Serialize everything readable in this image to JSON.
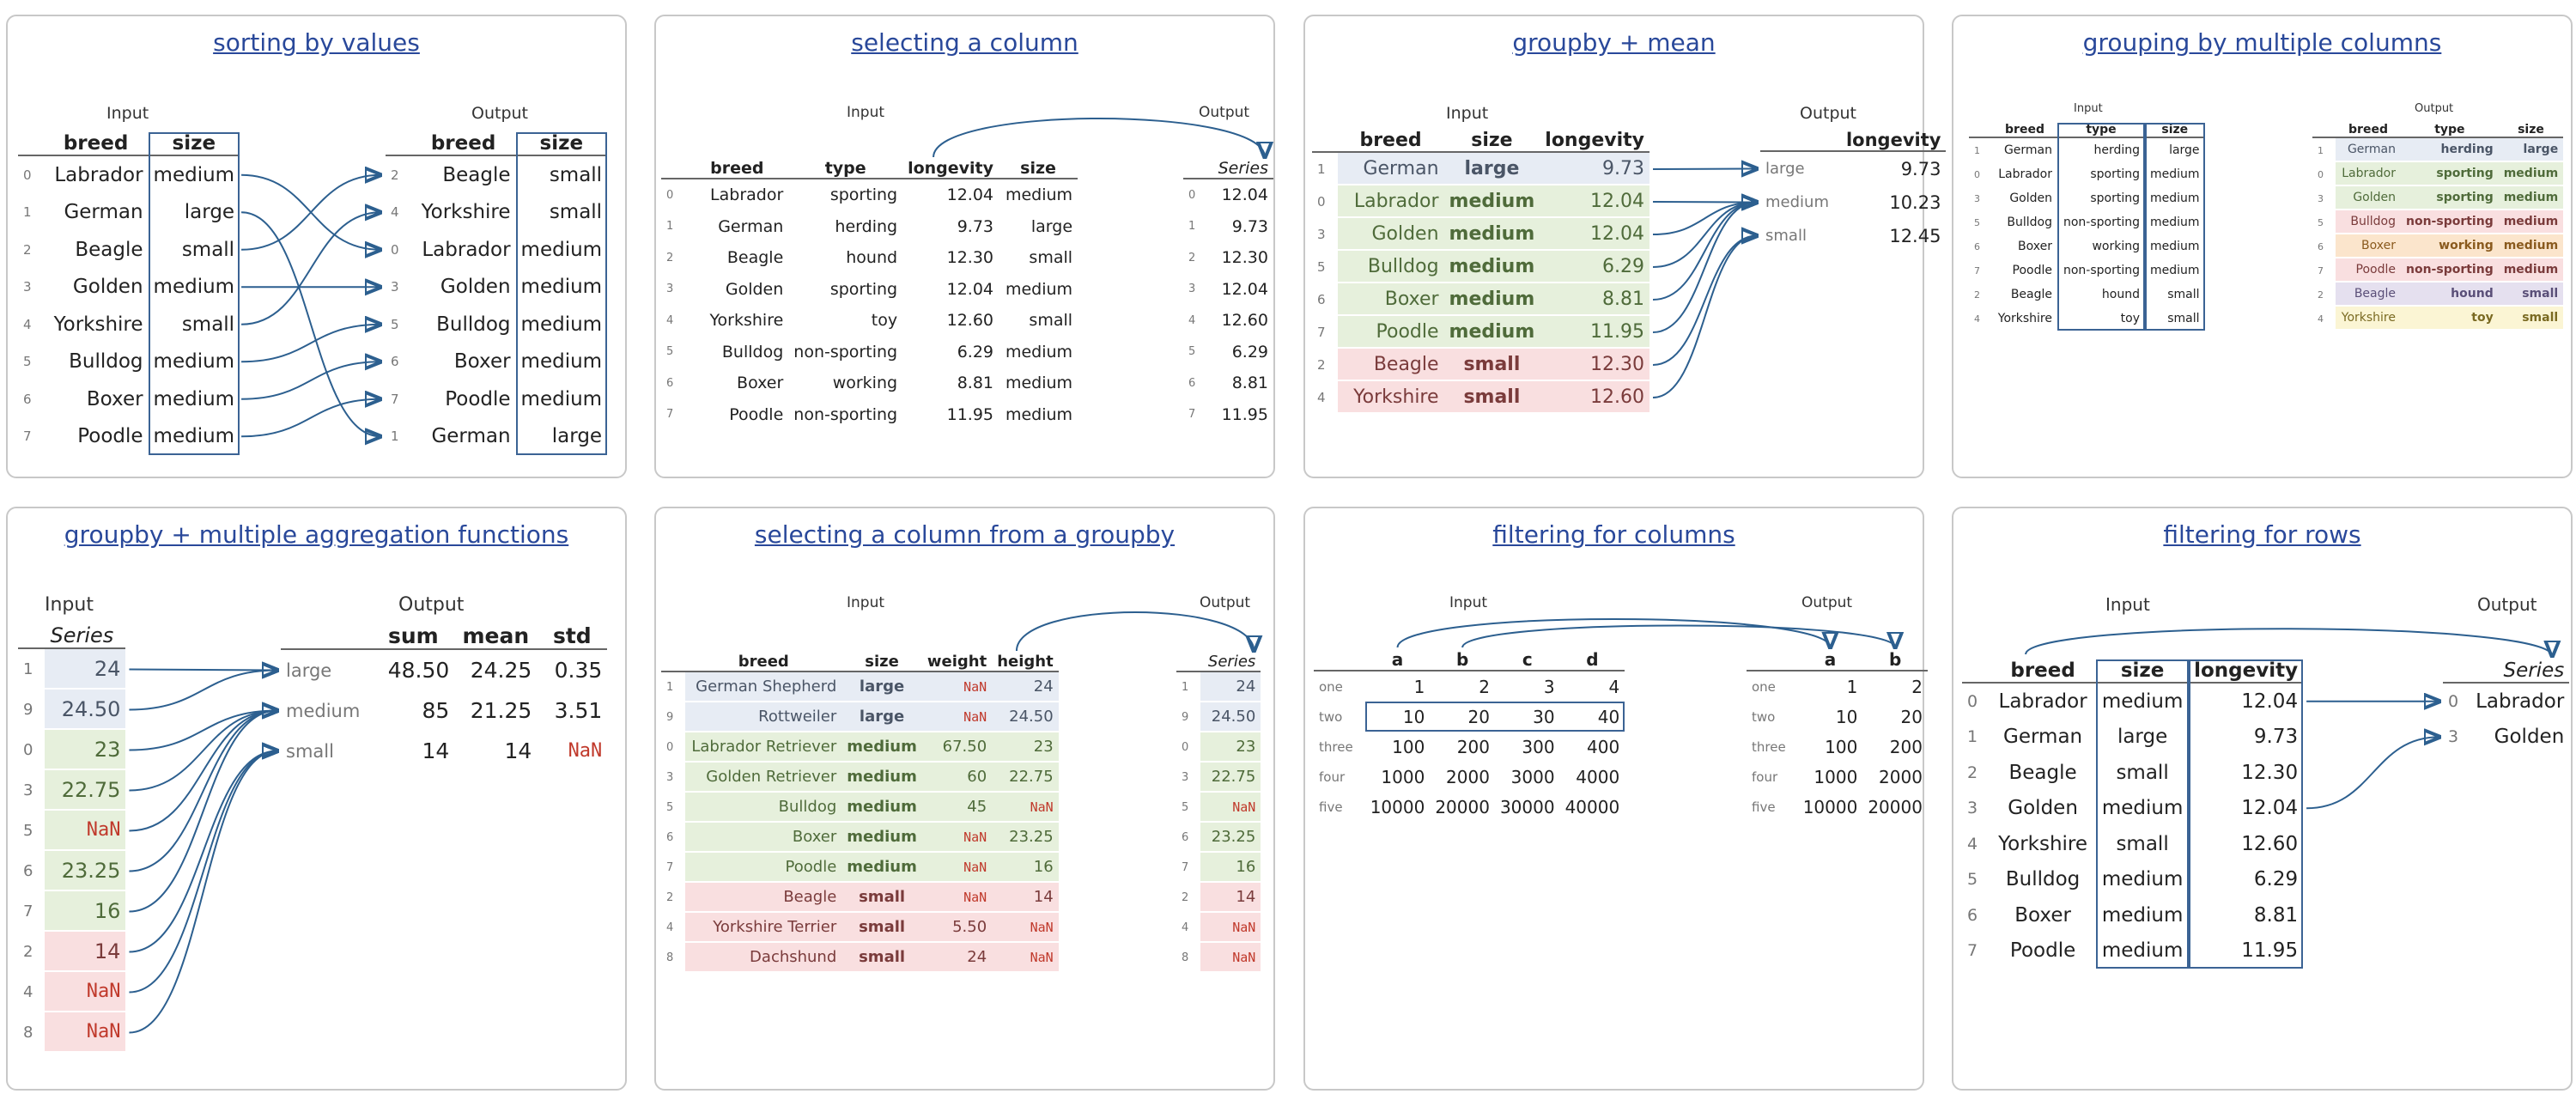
{
  "p1": {
    "title": "sorting by values",
    "input_label": "Input",
    "output_label": "Output",
    "in_headers": [
      "breed",
      "size"
    ],
    "out_headers": [
      "breed",
      "size"
    ],
    "input_rows": [
      [
        "0",
        "Labrador",
        "medium"
      ],
      [
        "1",
        "German",
        "large"
      ],
      [
        "2",
        "Beagle",
        "small"
      ],
      [
        "3",
        "Golden",
        "medium"
      ],
      [
        "4",
        "Yorkshire",
        "small"
      ],
      [
        "5",
        "Bulldog",
        "medium"
      ],
      [
        "6",
        "Boxer",
        "medium"
      ],
      [
        "7",
        "Poodle",
        "medium"
      ]
    ],
    "output_rows": [
      [
        "2",
        "Beagle",
        "small"
      ],
      [
        "4",
        "Yorkshire",
        "small"
      ],
      [
        "0",
        "Labrador",
        "medium"
      ],
      [
        "3",
        "Golden",
        "medium"
      ],
      [
        "5",
        "Bulldog",
        "medium"
      ],
      [
        "6",
        "Boxer",
        "medium"
      ],
      [
        "7",
        "Poodle",
        "medium"
      ],
      [
        "1",
        "German",
        "large"
      ]
    ]
  },
  "p2": {
    "title": "selecting a column",
    "input_label": "Input",
    "output_label": "Output",
    "series_label": "Series",
    "in_headers": [
      "breed",
      "type",
      "longevity",
      "size"
    ],
    "input_rows": [
      [
        "0",
        "Labrador",
        "sporting",
        "12.04",
        "medium"
      ],
      [
        "1",
        "German",
        "herding",
        "9.73",
        "large"
      ],
      [
        "2",
        "Beagle",
        "hound",
        "12.30",
        "small"
      ],
      [
        "3",
        "Golden",
        "sporting",
        "12.04",
        "medium"
      ],
      [
        "4",
        "Yorkshire",
        "toy",
        "12.60",
        "small"
      ],
      [
        "5",
        "Bulldog",
        "non-sporting",
        "6.29",
        "medium"
      ],
      [
        "6",
        "Boxer",
        "working",
        "8.81",
        "medium"
      ],
      [
        "7",
        "Poodle",
        "non-sporting",
        "11.95",
        "medium"
      ]
    ],
    "output_rows": [
      [
        "0",
        "12.04"
      ],
      [
        "1",
        "9.73"
      ],
      [
        "2",
        "12.30"
      ],
      [
        "3",
        "12.04"
      ],
      [
        "4",
        "12.60"
      ],
      [
        "5",
        "6.29"
      ],
      [
        "6",
        "8.81"
      ],
      [
        "7",
        "11.95"
      ]
    ]
  },
  "p3": {
    "title": "groupby + mean",
    "input_label": "Input",
    "output_label": "Output",
    "in_headers": [
      "breed",
      "size",
      "longevity"
    ],
    "out_header": "longevity",
    "input_rows": [
      [
        "1",
        "German",
        "large",
        "9.73",
        "b"
      ],
      [
        "0",
        "Labrador",
        "medium",
        "12.04",
        "g"
      ],
      [
        "3",
        "Golden",
        "medium",
        "12.04",
        "g"
      ],
      [
        "5",
        "Bulldog",
        "medium",
        "6.29",
        "g"
      ],
      [
        "6",
        "Boxer",
        "medium",
        "8.81",
        "g"
      ],
      [
        "7",
        "Poodle",
        "medium",
        "11.95",
        "g"
      ],
      [
        "2",
        "Beagle",
        "small",
        "12.30",
        "r"
      ],
      [
        "4",
        "Yorkshire",
        "small",
        "12.60",
        "r"
      ]
    ],
    "output_rows": [
      [
        "large",
        "9.73"
      ],
      [
        "medium",
        "10.23"
      ],
      [
        "small",
        "12.45"
      ]
    ]
  },
  "p4": {
    "title": "grouping by multiple columns",
    "input_label": "Input",
    "output_label": "Output",
    "in_headers": [
      "breed",
      "type",
      "size"
    ],
    "out_headers": [
      "breed",
      "type",
      "size"
    ],
    "input_rows": [
      [
        "1",
        "German",
        "herding",
        "large"
      ],
      [
        "0",
        "Labrador",
        "sporting",
        "medium"
      ],
      [
        "3",
        "Golden",
        "sporting",
        "medium"
      ],
      [
        "5",
        "Bulldog",
        "non-sporting",
        "medium"
      ],
      [
        "6",
        "Boxer",
        "working",
        "medium"
      ],
      [
        "7",
        "Poodle",
        "non-sporting",
        "medium"
      ],
      [
        "2",
        "Beagle",
        "hound",
        "small"
      ],
      [
        "4",
        "Yorkshire",
        "toy",
        "small"
      ]
    ],
    "output_rows": [
      [
        "1",
        "German",
        "herding",
        "large",
        "b"
      ],
      [
        "0",
        "Labrador",
        "sporting",
        "medium",
        "g"
      ],
      [
        "3",
        "Golden",
        "sporting",
        "medium",
        "g"
      ],
      [
        "5",
        "Bulldog",
        "non-sporting",
        "medium",
        "r"
      ],
      [
        "6",
        "Boxer",
        "working",
        "medium",
        "o"
      ],
      [
        "7",
        "Poodle",
        "non-sporting",
        "medium",
        "r"
      ],
      [
        "2",
        "Beagle",
        "hound",
        "small",
        "p"
      ],
      [
        "4",
        "Yorkshire",
        "toy",
        "small",
        "y"
      ]
    ]
  },
  "p5": {
    "title": "groupby + multiple aggregation functions",
    "input_label": "Input",
    "output_label": "Output",
    "series_label": "Series",
    "input_rows": [
      [
        "1",
        "24",
        "b"
      ],
      [
        "9",
        "24.50",
        "b"
      ],
      [
        "0",
        "23",
        "g"
      ],
      [
        "3",
        "22.75",
        "g"
      ],
      [
        "5",
        "NaN",
        "g"
      ],
      [
        "6",
        "23.25",
        "g"
      ],
      [
        "7",
        "16",
        "g"
      ],
      [
        "2",
        "14",
        "r"
      ],
      [
        "4",
        "NaN",
        "r"
      ],
      [
        "8",
        "NaN",
        "r"
      ]
    ],
    "out_headers": [
      "sum",
      "mean",
      "std"
    ],
    "output_rows": [
      [
        "large",
        "48.50",
        "24.25",
        "0.35"
      ],
      [
        "medium",
        "85",
        "21.25",
        "3.51"
      ],
      [
        "small",
        "14",
        "14",
        "NaN"
      ]
    ]
  },
  "p6": {
    "title": "selecting a column from a groupby",
    "input_label": "Input",
    "output_label": "Output",
    "series_label": "Series",
    "in_headers": [
      "breed",
      "size",
      "weight",
      "height"
    ],
    "input_rows": [
      [
        "1",
        "German Shepherd",
        "large",
        "NaN",
        "24",
        "b"
      ],
      [
        "9",
        "Rottweiler",
        "large",
        "NaN",
        "24.50",
        "b"
      ],
      [
        "0",
        "Labrador Retriever",
        "medium",
        "67.50",
        "23",
        "g"
      ],
      [
        "3",
        "Golden Retriever",
        "medium",
        "60",
        "22.75",
        "g"
      ],
      [
        "5",
        "Bulldog",
        "medium",
        "45",
        "NaN",
        "g"
      ],
      [
        "6",
        "Boxer",
        "medium",
        "NaN",
        "23.25",
        "g"
      ],
      [
        "7",
        "Poodle",
        "medium",
        "NaN",
        "16",
        "g"
      ],
      [
        "2",
        "Beagle",
        "small",
        "NaN",
        "14",
        "r"
      ],
      [
        "4",
        "Yorkshire Terrier",
        "small",
        "5.50",
        "NaN",
        "r"
      ],
      [
        "8",
        "Dachshund",
        "small",
        "24",
        "NaN",
        "r"
      ]
    ],
    "output_rows": [
      [
        "1",
        "24",
        "b"
      ],
      [
        "9",
        "24.50",
        "b"
      ],
      [
        "0",
        "23",
        "g"
      ],
      [
        "3",
        "22.75",
        "g"
      ],
      [
        "5",
        "NaN",
        "g"
      ],
      [
        "6",
        "23.25",
        "g"
      ],
      [
        "7",
        "16",
        "g"
      ],
      [
        "2",
        "14",
        "r"
      ],
      [
        "4",
        "NaN",
        "r"
      ],
      [
        "8",
        "NaN",
        "r"
      ]
    ]
  },
  "p7": {
    "title": "filtering for columns",
    "input_label": "Input",
    "output_label": "Output",
    "in_headers": [
      "a",
      "b",
      "c",
      "d"
    ],
    "out_headers": [
      "a",
      "b"
    ],
    "input_rows": [
      [
        "one",
        "1",
        "2",
        "3",
        "4"
      ],
      [
        "two",
        "10",
        "20",
        "30",
        "40"
      ],
      [
        "three",
        "100",
        "200",
        "300",
        "400"
      ],
      [
        "four",
        "1000",
        "2000",
        "3000",
        "4000"
      ],
      [
        "five",
        "10000",
        "20000",
        "30000",
        "40000"
      ]
    ],
    "output_rows": [
      [
        "one",
        "1",
        "2"
      ],
      [
        "two",
        "10",
        "20"
      ],
      [
        "three",
        "100",
        "200"
      ],
      [
        "four",
        "1000",
        "2000"
      ],
      [
        "five",
        "10000",
        "20000"
      ]
    ]
  },
  "p8": {
    "title": "filtering for rows",
    "input_label": "Input",
    "output_label": "Output",
    "series_label": "Series",
    "in_headers": [
      "breed",
      "size",
      "longevity"
    ],
    "input_rows": [
      [
        "0",
        "Labrador",
        "medium",
        "12.04"
      ],
      [
        "1",
        "German",
        "large",
        "9.73"
      ],
      [
        "2",
        "Beagle",
        "small",
        "12.30"
      ],
      [
        "3",
        "Golden",
        "medium",
        "12.04"
      ],
      [
        "4",
        "Yorkshire",
        "small",
        "12.60"
      ],
      [
        "5",
        "Bulldog",
        "medium",
        "6.29"
      ],
      [
        "6",
        "Boxer",
        "medium",
        "8.81"
      ],
      [
        "7",
        "Poodle",
        "medium",
        "11.95"
      ]
    ],
    "output_rows": [
      [
        "0",
        "Labrador"
      ],
      [
        "3",
        "Golden"
      ]
    ]
  }
}
